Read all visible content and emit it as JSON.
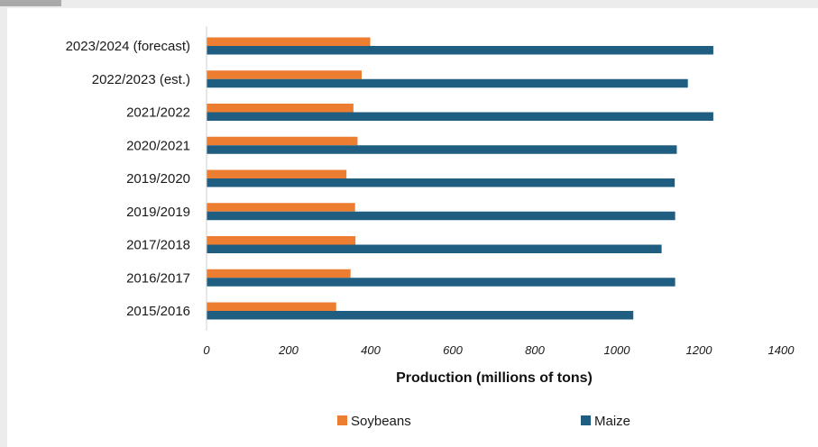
{
  "chart_data": {
    "type": "bar",
    "orientation": "horizontal",
    "categories": [
      "2015/2016",
      "2016/2017",
      "2017/2018",
      "2019/2019",
      "2019/2020",
      "2020/2021",
      "2021/2022",
      "2022/2023 (est.)",
      "2023/2024 (forecast)"
    ],
    "series": [
      {
        "name": "Soybeans",
        "color": "#ed7d31",
        "values": [
          316,
          351,
          363,
          362,
          341,
          368,
          358,
          378,
          399
        ]
      },
      {
        "name": "Maize",
        "color": "#1f5e80",
        "values": [
          1040,
          1142,
          1109,
          1142,
          1141,
          1146,
          1235,
          1173,
          1235
        ]
      }
    ],
    "xlabel": "Production  (millions of tons)",
    "ylabel": "",
    "xlim": [
      0,
      1400
    ],
    "xticks": [
      "0",
      "200",
      "400",
      "600",
      "800",
      "1000",
      "1200",
      "1400"
    ],
    "grid": false,
    "legend_position": "bottom"
  }
}
